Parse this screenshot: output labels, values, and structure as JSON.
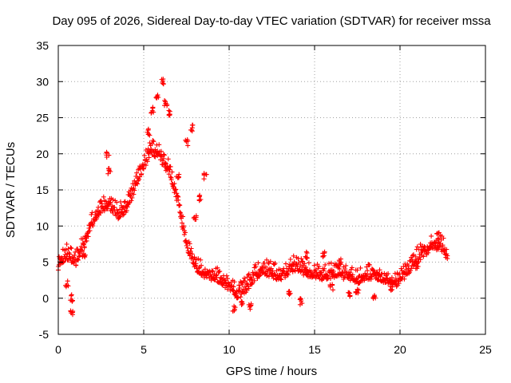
{
  "chart_data": {
    "type": "scatter",
    "title": "Day 095 of 2026, Sidereal Day-to-day VTEC variation (SDTVAR) for receiver mssa",
    "xlabel": "GPS time / hours",
    "ylabel": "SDTVAR / TECUs",
    "xlim": [
      0,
      25
    ],
    "ylim": [
      -5,
      35
    ],
    "xticks": [
      0,
      5,
      10,
      15,
      20,
      25
    ],
    "xtick_labels": [
      "0",
      "5",
      "10",
      "15",
      "20",
      "25"
    ],
    "yticks": [
      -5,
      0,
      5,
      10,
      15,
      20,
      25,
      30,
      35
    ],
    "ytick_labels": [
      "-5",
      "0",
      "5",
      "10",
      "15",
      "20",
      "25",
      "30",
      "35"
    ],
    "grid": true,
    "marker": "plus",
    "color": "#ff0000",
    "series": [
      {
        "name": "SDTVAR",
        "trend": [
          [
            0.0,
            5.0
          ],
          [
            0.5,
            6.5
          ],
          [
            1.0,
            5.5
          ],
          [
            1.5,
            8.0
          ],
          [
            2.0,
            11.0
          ],
          [
            2.5,
            13.0
          ],
          [
            3.0,
            13.5
          ],
          [
            3.5,
            12.0
          ],
          [
            4.0,
            13.0
          ],
          [
            4.5,
            16.0
          ],
          [
            5.0,
            19.0
          ],
          [
            5.5,
            21.0
          ],
          [
            6.0,
            20.0
          ],
          [
            6.5,
            18.0
          ],
          [
            7.0,
            14.0
          ],
          [
            7.5,
            8.0
          ],
          [
            8.0,
            5.0
          ],
          [
            8.5,
            4.0
          ],
          [
            9.0,
            3.5
          ],
          [
            9.5,
            3.0
          ],
          [
            10.0,
            2.0
          ],
          [
            10.5,
            1.0
          ],
          [
            11.0,
            2.0
          ],
          [
            11.5,
            3.5
          ],
          [
            12.0,
            4.5
          ],
          [
            12.5,
            4.0
          ],
          [
            13.0,
            3.5
          ],
          [
            13.5,
            4.5
          ],
          [
            14.0,
            5.0
          ],
          [
            14.5,
            4.0
          ],
          [
            15.0,
            4.0
          ],
          [
            15.5,
            3.5
          ],
          [
            16.0,
            4.0
          ],
          [
            16.5,
            4.0
          ],
          [
            17.0,
            3.5
          ],
          [
            17.5,
            3.0
          ],
          [
            18.0,
            3.5
          ],
          [
            18.5,
            4.0
          ],
          [
            19.0,
            3.0
          ],
          [
            19.5,
            2.5
          ],
          [
            20.0,
            3.0
          ],
          [
            20.5,
            4.5
          ],
          [
            21.0,
            6.0
          ],
          [
            21.5,
            7.0
          ],
          [
            22.0,
            8.0
          ],
          [
            22.5,
            7.5
          ],
          [
            22.8,
            6.0
          ]
        ],
        "excursions": [
          [
            0.8,
            0.0
          ],
          [
            0.8,
            -2.0
          ],
          [
            0.5,
            2.0
          ],
          [
            1.5,
            6.0
          ],
          [
            3.0,
            17.5
          ],
          [
            2.9,
            20.0
          ],
          [
            5.3,
            23.0
          ],
          [
            5.5,
            26.0
          ],
          [
            5.8,
            28.0
          ],
          [
            6.1,
            30.0
          ],
          [
            6.3,
            27.0
          ],
          [
            6.5,
            25.5
          ],
          [
            7.0,
            17.0
          ],
          [
            7.5,
            21.5
          ],
          [
            7.8,
            23.5
          ],
          [
            8.0,
            11.0
          ],
          [
            8.3,
            14.0
          ],
          [
            8.6,
            17.0
          ],
          [
            10.3,
            -1.5
          ],
          [
            10.7,
            -0.5
          ],
          [
            11.2,
            -1.2
          ],
          [
            13.5,
            1.0
          ],
          [
            14.2,
            -0.5
          ],
          [
            14.5,
            6.0
          ],
          [
            15.5,
            6.0
          ],
          [
            16.0,
            1.5
          ],
          [
            16.5,
            5.0
          ],
          [
            17.0,
            0.5
          ],
          [
            17.5,
            1.0
          ],
          [
            18.5,
            0.0
          ],
          [
            19.5,
            1.5
          ],
          [
            21.0,
            4.5
          ],
          [
            22.2,
            8.6
          ]
        ]
      }
    ]
  }
}
